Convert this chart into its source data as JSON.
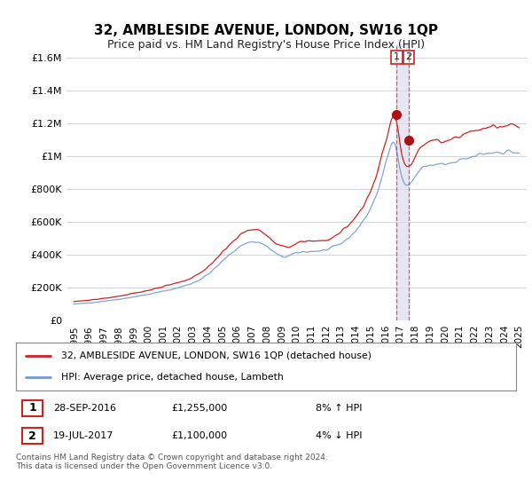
{
  "title": "32, AMBLESIDE AVENUE, LONDON, SW16 1QP",
  "subtitle": "Price paid vs. HM Land Registry's House Price Index (HPI)",
  "ylabel_ticks": [
    "£0",
    "£200K",
    "£400K",
    "£600K",
    "£800K",
    "£1M",
    "£1.2M",
    "£1.4M",
    "£1.6M"
  ],
  "ytick_values": [
    0,
    200000,
    400000,
    600000,
    800000,
    1000000,
    1200000,
    1400000,
    1600000
  ],
  "ylim": [
    0,
    1680000
  ],
  "xlim_start": 1994.5,
  "xlim_end": 2025.5,
  "hpi_color": "#7799cc",
  "price_color": "#cc2222",
  "marker1_date": 2016.74,
  "marker1_price": 1255000,
  "marker2_date": 2017.55,
  "marker2_price": 1100000,
  "vline_color": "#dd3333",
  "vline_style": "--",
  "shade_color": "#ddddee",
  "legend_line1": "32, AMBLESIDE AVENUE, LONDON, SW16 1QP (detached house)",
  "legend_line2": "HPI: Average price, detached house, Lambeth",
  "annotation1_date": "28-SEP-2016",
  "annotation1_price": "£1,255,000",
  "annotation1_hpi": "8% ↑ HPI",
  "annotation2_date": "19-JUL-2017",
  "annotation2_price": "£1,100,000",
  "annotation2_hpi": "4% ↓ HPI",
  "footer": "Contains HM Land Registry data © Crown copyright and database right 2024.\nThis data is licensed under the Open Government Licence v3.0.",
  "background_color": "#ffffff",
  "grid_color": "#cccccc",
  "xtick_years": [
    1995,
    1996,
    1997,
    1998,
    1999,
    2000,
    2001,
    2002,
    2003,
    2004,
    2005,
    2006,
    2007,
    2008,
    2009,
    2010,
    2011,
    2012,
    2013,
    2014,
    2015,
    2016,
    2017,
    2018,
    2019,
    2020,
    2021,
    2022,
    2023,
    2024,
    2025
  ]
}
